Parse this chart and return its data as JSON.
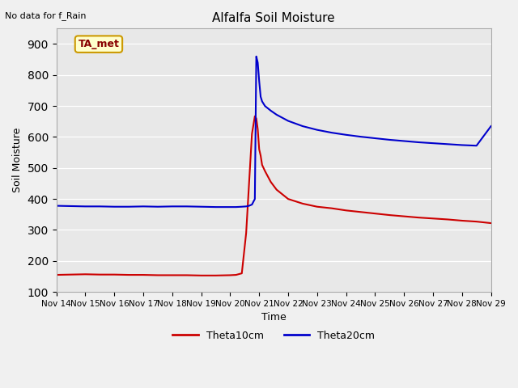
{
  "title": "Alfalfa Soil Moisture",
  "ylabel": "Soil Moisture",
  "xlabel": "Time",
  "top_left_text": "No data for f_Rain",
  "legend_label": "TA_met",
  "ylim": [
    100,
    950
  ],
  "yticks": [
    100,
    200,
    300,
    400,
    500,
    600,
    700,
    800,
    900
  ],
  "plot_bg": "#e8e8e8",
  "fig_bg": "#f0f0f0",
  "line_red": "#cc0000",
  "line_blue": "#0000cc",
  "legend_box_fill": "#ffffcc",
  "legend_box_edge": "#cc9900",
  "x_tick_labels": [
    "Nov 14",
    "Nov 15",
    "Nov 16",
    "Nov 17",
    "Nov 18",
    "Nov 19",
    "Nov 20",
    "Nov 21",
    "Nov 22",
    "Nov 23",
    "Nov 24",
    "Nov 25",
    "Nov 26",
    "Nov 27",
    "Nov 28",
    "Nov 29"
  ],
  "red_x": [
    0,
    0.5,
    1,
    1.5,
    2,
    2.5,
    3,
    3.5,
    4,
    4.5,
    5,
    5.5,
    6,
    6.2,
    6.4,
    6.55,
    6.65,
    6.75,
    6.85,
    6.9,
    6.95,
    7.0,
    7.05,
    7.1,
    7.2,
    7.4,
    7.6,
    7.8,
    8.0,
    8.5,
    9.0,
    9.5,
    10.0,
    10.5,
    11.0,
    11.5,
    12.0,
    12.5,
    13.0,
    13.5,
    14.0,
    14.5,
    15.0
  ],
  "red_y": [
    155,
    156,
    157,
    156,
    156,
    155,
    155,
    154,
    154,
    154,
    153,
    153,
    154,
    155,
    160,
    290,
    450,
    610,
    667,
    660,
    625,
    560,
    540,
    510,
    490,
    455,
    430,
    415,
    400,
    385,
    375,
    370,
    363,
    358,
    353,
    348,
    344,
    340,
    337,
    334,
    330,
    327,
    322
  ],
  "blue_x": [
    0,
    0.5,
    1,
    1.5,
    2,
    2.5,
    3,
    3.5,
    4,
    4.5,
    5,
    5.5,
    6,
    6.2,
    6.4,
    6.55,
    6.65,
    6.75,
    6.85,
    6.9,
    6.95,
    7.0,
    7.05,
    7.1,
    7.2,
    7.4,
    7.6,
    7.8,
    8.0,
    8.5,
    9.0,
    9.5,
    10.0,
    10.5,
    11.0,
    11.5,
    12.0,
    12.5,
    13.0,
    13.5,
    14.0,
    14.5,
    15.0
  ],
  "blue_y": [
    378,
    377,
    376,
    376,
    375,
    375,
    376,
    375,
    376,
    376,
    375,
    374,
    374,
    374,
    375,
    376,
    378,
    382,
    400,
    860,
    840,
    780,
    730,
    715,
    700,
    685,
    672,
    662,
    652,
    635,
    623,
    614,
    607,
    601,
    596,
    591,
    587,
    583,
    580,
    577,
    574,
    572,
    635
  ]
}
